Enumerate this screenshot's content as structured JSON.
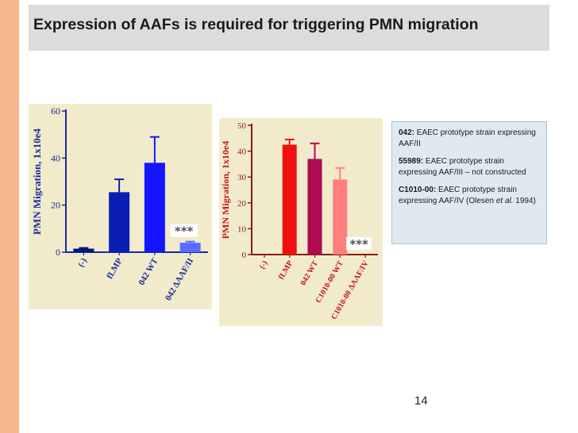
{
  "slide": {
    "title": "Expression of AAFs is required for triggering PMN migration",
    "page_number": "14",
    "colors": {
      "accent_strip": "#f7b58a",
      "title_bar": "#dcdcdc",
      "panel": "#f1ebcc",
      "info_box": "#dfeaf0"
    }
  },
  "info_box": {
    "entries": [
      {
        "label": "042:",
        "text": " EAEC prototype strain expressing AAF/II"
      },
      {
        "label": "55989:",
        "text": " EAEC prototype strain expressing AAF/III – not constructed"
      },
      {
        "label": "C1010-00:",
        "text_before": " EAEC prototype strain expressing AAF/IV (Olesen ",
        "italic": "et al.",
        "text_after": " 1994)"
      }
    ]
  },
  "chart_data": [
    {
      "type": "bar",
      "ylabel": "PMN Migration, 1x10e4",
      "ylim": [
        0,
        60
      ],
      "yticks": [
        0,
        20,
        40,
        60
      ],
      "categories": [
        "(-)",
        "fLMP",
        "042 WT",
        "042 ΔAAF/II"
      ],
      "values": [
        1.5,
        25.5,
        38,
        4
      ],
      "errors": [
        0.3,
        5.5,
        11,
        0.5
      ],
      "colors": [
        "#00147a",
        "#0a1eb4",
        "#1414ff",
        "#5a6cff"
      ],
      "annotation": {
        "text": "***",
        "category_index": 3
      },
      "grid": false
    },
    {
      "type": "bar",
      "ylabel": "PMN Migration, 1x10e4",
      "ylim": [
        0,
        50
      ],
      "yticks": [
        0,
        10,
        20,
        30,
        40,
        50
      ],
      "categories": [
        "(-)",
        "fLMP",
        "042 WT",
        "C1010-00 WT",
        "C1010-00 ΔAAF/IV"
      ],
      "values": [
        0,
        42.5,
        37,
        29,
        0
      ],
      "errors": [
        0,
        2,
        6,
        4.5,
        0
      ],
      "colors": [
        "#8b0000",
        "#f01010",
        "#b00a50",
        "#ff7f7f",
        "#cc3333"
      ],
      "annotation": {
        "text": "***",
        "category_index": 4
      },
      "grid": false
    }
  ]
}
